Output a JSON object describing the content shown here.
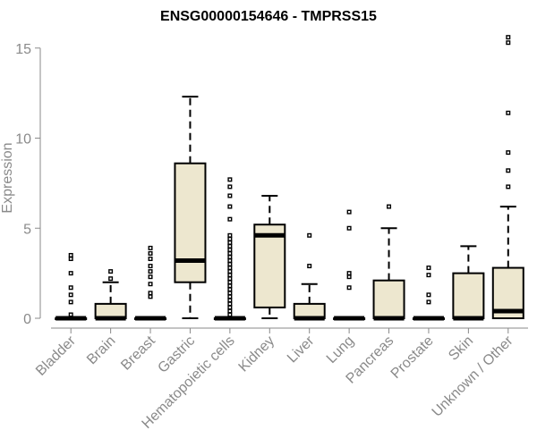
{
  "chart_data": {
    "type": "boxplot",
    "title": "ENSG00000154646 - TMPRSS15",
    "xlabel": "",
    "ylabel": "Expression",
    "ylim": [
      0,
      15.5
    ],
    "yticks": [
      0,
      5,
      10,
      15
    ],
    "colors": {
      "box_fill": "#ede7cf",
      "axis": "#8a8a8a",
      "stroke": "#000000"
    },
    "categories": [
      "Bladder",
      "Brain",
      "Breast",
      "Gastric",
      "Hematopoietic cells",
      "Kidney",
      "Liver",
      "Lung",
      "Pancreas",
      "Prostate",
      "Skin",
      "Unknown / Other"
    ],
    "boxes": [
      {
        "q1": 0,
        "median": 0,
        "q3": 0,
        "whisker_low": 0,
        "whisker_high": 0,
        "outliers": [
          0.2,
          0.9,
          1.3,
          1.7,
          2.5,
          3.3,
          3.5
        ]
      },
      {
        "q1": 0,
        "median": 0,
        "q3": 0.8,
        "whisker_low": 0,
        "whisker_high": 2.0,
        "outliers": [
          2.2,
          2.6
        ]
      },
      {
        "q1": 0,
        "median": 0,
        "q3": 0,
        "whisker_low": 0,
        "whisker_high": 0,
        "outliers": [
          1.2,
          1.4,
          1.9,
          2.3,
          2.6,
          2.9,
          3.3,
          3.6,
          3.9
        ]
      },
      {
        "q1": 2.0,
        "median": 3.2,
        "q3": 8.6,
        "whisker_low": 0,
        "whisker_high": 12.3,
        "outliers": []
      },
      {
        "q1": 0,
        "median": 0,
        "q3": 0,
        "whisker_low": 0,
        "whisker_high": 0,
        "outliers": [
          0.2,
          0.4,
          0.6,
          0.8,
          1.0,
          1.2,
          1.4,
          1.6,
          1.8,
          2.0,
          2.2,
          2.4,
          2.6,
          2.8,
          3.0,
          3.2,
          3.4,
          3.6,
          3.8,
          4.0,
          4.2,
          4.4,
          4.6,
          5.5,
          6.2,
          6.8,
          7.3,
          7.7
        ]
      },
      {
        "q1": 0.6,
        "median": 4.6,
        "q3": 5.2,
        "whisker_low": 0,
        "whisker_high": 6.8,
        "outliers": []
      },
      {
        "q1": 0,
        "median": 0,
        "q3": 0.8,
        "whisker_low": 0,
        "whisker_high": 1.9,
        "outliers": [
          2.9,
          4.6
        ]
      },
      {
        "q1": 0,
        "median": 0,
        "q3": 0,
        "whisker_low": 0,
        "whisker_high": 0,
        "outliers": [
          1.7,
          2.3,
          2.5,
          5.0,
          5.9
        ]
      },
      {
        "q1": 0,
        "median": 0,
        "q3": 2.1,
        "whisker_low": 0,
        "whisker_high": 5.0,
        "outliers": [
          6.2
        ]
      },
      {
        "q1": 0,
        "median": 0,
        "q3": 0,
        "whisker_low": 0,
        "whisker_high": 0,
        "outliers": [
          0.9,
          1.3,
          2.4,
          2.8
        ]
      },
      {
        "q1": 0,
        "median": 0,
        "q3": 2.5,
        "whisker_low": 0,
        "whisker_high": 4.0,
        "outliers": []
      },
      {
        "q1": 0,
        "median": 0.4,
        "q3": 2.8,
        "whisker_low": 0,
        "whisker_high": 6.2,
        "outliers": [
          7.3,
          8.2,
          9.2,
          11.4,
          15.3,
          15.6
        ]
      }
    ]
  }
}
